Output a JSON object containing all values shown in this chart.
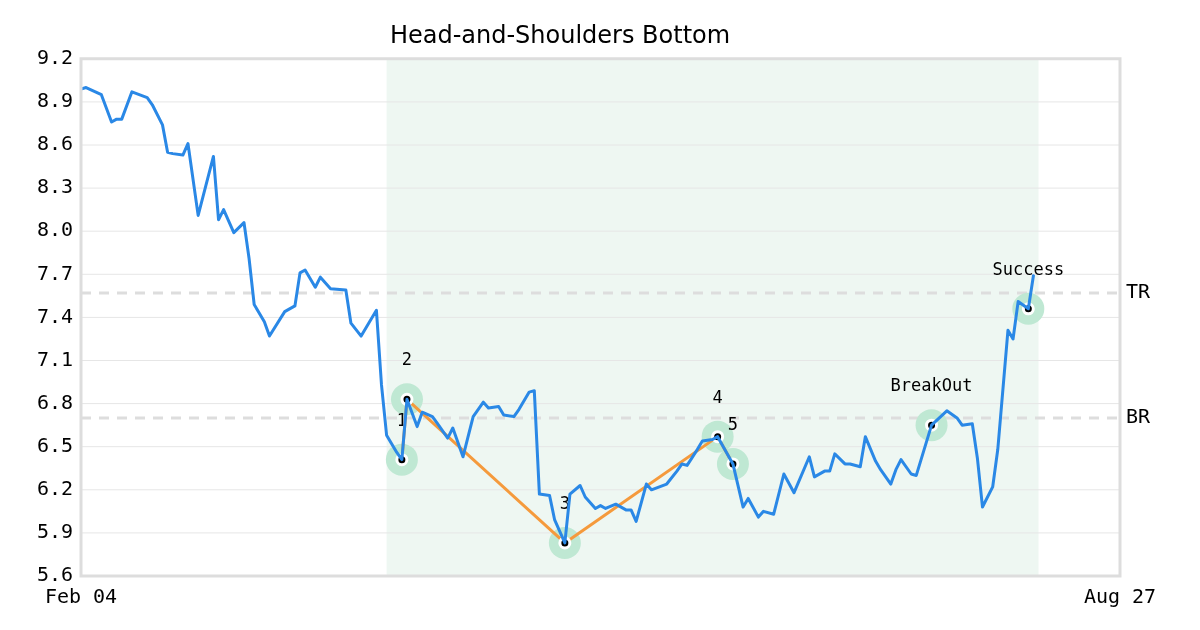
{
  "chart_data": {
    "type": "line",
    "title": "Head-and-Shoulders Bottom",
    "xlim": [
      "--02-04",
      "--08-27"
    ],
    "xticks": [
      {
        "value": "--02-04",
        "label": "Feb 04"
      },
      {
        "value": "--08-27",
        "label": "Aug 27"
      }
    ],
    "ylim": [
      5.6,
      9.2
    ],
    "yticks": [
      5.6,
      5.9,
      6.2,
      6.5,
      6.8,
      7.1,
      7.4,
      7.7,
      {
        "value": 8,
        "label": "8.0"
      },
      8.3,
      8.6,
      8.9,
      9.2
    ],
    "grid": "y",
    "legend": false,
    "series": [
      {
        "type": "line",
        "color": "#2a88e6",
        "marker": "none",
        "x": [
          "--02-04",
          "--02-05",
          "--02-08",
          "--02-10",
          "--02-11",
          "--02-12",
          "--02-14",
          "--02-17",
          "--02-18",
          "--02-20",
          "--02-21",
          "--02-22",
          "--02-24",
          "--02-25",
          "--02-27",
          "--03-02",
          "--03-03",
          "--03-04",
          "--03-06",
          "--03-08",
          "--03-09",
          "--03-10",
          "--03-12",
          "--03-13",
          "--03-16",
          "--03-18",
          "--03-19",
          "--03-20",
          "--03-22",
          "--03-23",
          "--03-25",
          "--03-28",
          "--03-29",
          "--03-31",
          "--04-03",
          "--04-04",
          "--04-05",
          "--04-07",
          "--04-08",
          "--04-09",
          "--04-11",
          "--04-12",
          "--04-14",
          "--04-15",
          "--04-17",
          "--04-18",
          "--04-20",
          "--04-21",
          "--04-22",
          "--04-24",
          "--04-25",
          "--04-27",
          "--04-28",
          "--04-30",
          "--05-01",
          "--05-03",
          "--05-04",
          "--05-05",
          "--05-07",
          "--05-08",
          "--05-10",
          "--05-11",
          "--05-13",
          "--05-14",
          "--05-16",
          "--05-17",
          "--05-18",
          "--05-20",
          "--05-22",
          "--05-23",
          "--05-24",
          "--05-26",
          "--05-27",
          "--05-30",
          "--06-01",
          "--06-02",
          "--06-03",
          "--06-05",
          "--06-06",
          "--06-08",
          "--06-09",
          "--06-12",
          "--06-14",
          "--06-15",
          "--06-17",
          "--06-18",
          "--06-20",
          "--06-22",
          "--06-24",
          "--06-27",
          "--06-28",
          "--06-30",
          "--07-01",
          "--07-02",
          "--07-04",
          "--07-05",
          "--07-07",
          "--07-08",
          "--07-10",
          "--07-11",
          "--07-13",
          "--07-14",
          "--07-15",
          "--07-17",
          "--07-18",
          "--07-21",
          "--07-24",
          "--07-26",
          "--07-27",
          "--07-29",
          "--07-30",
          "--07-31",
          "--08-02",
          "--08-03",
          "--08-05",
          "--08-06",
          "--08-07",
          "--08-09",
          "--08-10"
        ],
        "values": [
          8.99,
          9.0,
          8.95,
          8.76,
          8.78,
          8.78,
          8.97,
          8.93,
          8.88,
          8.74,
          8.55,
          8.54,
          8.53,
          8.61,
          8.11,
          8.52,
          8.08,
          8.15,
          7.99,
          8.06,
          7.81,
          7.49,
          7.37,
          7.27,
          7.44,
          7.48,
          7.71,
          7.73,
          7.61,
          7.68,
          7.6,
          7.59,
          7.36,
          7.27,
          7.45,
          6.93,
          6.58,
          6.46,
          6.41,
          6.83,
          6.64,
          6.74,
          6.71,
          6.66,
          6.56,
          6.63,
          6.43,
          6.57,
          6.71,
          6.81,
          6.77,
          6.78,
          6.72,
          6.71,
          6.76,
          6.88,
          6.89,
          6.17,
          6.16,
          5.99,
          5.83,
          6.17,
          6.23,
          6.15,
          6.07,
          6.09,
          6.07,
          6.1,
          6.06,
          6.06,
          5.98,
          6.24,
          6.2,
          6.24,
          6.33,
          6.38,
          6.37,
          6.48,
          6.54,
          6.55,
          6.57,
          6.38,
          6.08,
          6.14,
          6.01,
          6.05,
          6.03,
          6.31,
          6.18,
          6.43,
          6.29,
          6.33,
          6.33,
          6.45,
          6.38,
          6.38,
          6.36,
          6.57,
          6.4,
          6.34,
          6.24,
          6.34,
          6.41,
          6.31,
          6.3,
          6.65,
          6.75,
          6.7,
          6.65,
          6.66,
          6.42,
          6.08,
          6.22,
          6.48,
          7.31,
          7.25,
          7.51,
          7.46,
          7.69
        ]
      },
      {
        "type": "line",
        "color": "#f59a3c",
        "marker": "circle",
        "x": [
          "--04-08",
          "--04-09",
          "--05-10",
          "--06-09",
          "--06-12"
        ],
        "values": [
          6.41,
          6.83,
          5.83,
          6.57,
          6.38
        ]
      },
      {
        "type": "scatter",
        "color": "#000000",
        "marker": "circle",
        "x": [
          "--07-21",
          "--08-09"
        ],
        "values": [
          6.65,
          7.46
        ]
      }
    ],
    "bands": [
      {
        "axis": "x",
        "from": "--04-05",
        "to": "--08-11",
        "color": "#eef7f2"
      }
    ],
    "ref_lines": [
      {
        "axis": "y",
        "value": 7.57,
        "label": "TR",
        "color": "#dddddd",
        "line_style": "dashed"
      },
      {
        "axis": "y",
        "value": 6.7,
        "label": "BR",
        "color": "#dddddd",
        "line_style": "dashed"
      }
    ],
    "annotations": [
      {
        "text": "1",
        "x": "--04-08",
        "y": 6.41
      },
      {
        "text": "2",
        "x": "--04-09",
        "y": 6.83
      },
      {
        "text": "3",
        "x": "--05-10",
        "y": 5.83
      },
      {
        "text": "4",
        "x": "--06-09",
        "y": 6.57
      },
      {
        "text": "5",
        "x": "--06-12",
        "y": 6.38
      },
      {
        "text": "BreakOut",
        "x": "--07-21",
        "y": 6.65
      },
      {
        "text": "Success",
        "x": "--08-09",
        "y": 7.46
      }
    ]
  }
}
